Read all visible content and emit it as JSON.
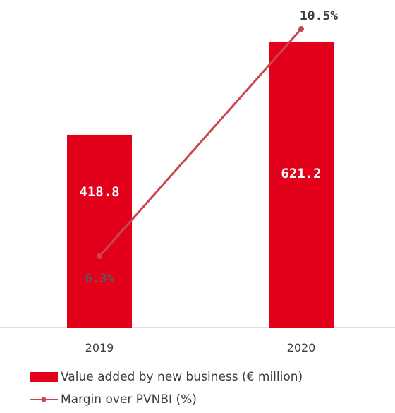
{
  "chart_data": {
    "type": "bar",
    "categories": [
      "2019",
      "2020"
    ],
    "series": [
      {
        "name": "Value added by new business (€ million)",
        "type": "bar",
        "values": [
          418.8,
          621.2
        ],
        "value_labels": [
          "418.8",
          "621.2"
        ],
        "color": "#e3001b"
      },
      {
        "name": "Margin over PVNBI (%)",
        "type": "line",
        "values": [
          6.3,
          10.5
        ],
        "value_labels": [
          "6.3%",
          "10.5%"
        ],
        "color": "#c8474f"
      }
    ],
    "title": "",
    "xlabel": "",
    "ylabel": "",
    "legend_position": "bottom-left",
    "grid": false
  }
}
